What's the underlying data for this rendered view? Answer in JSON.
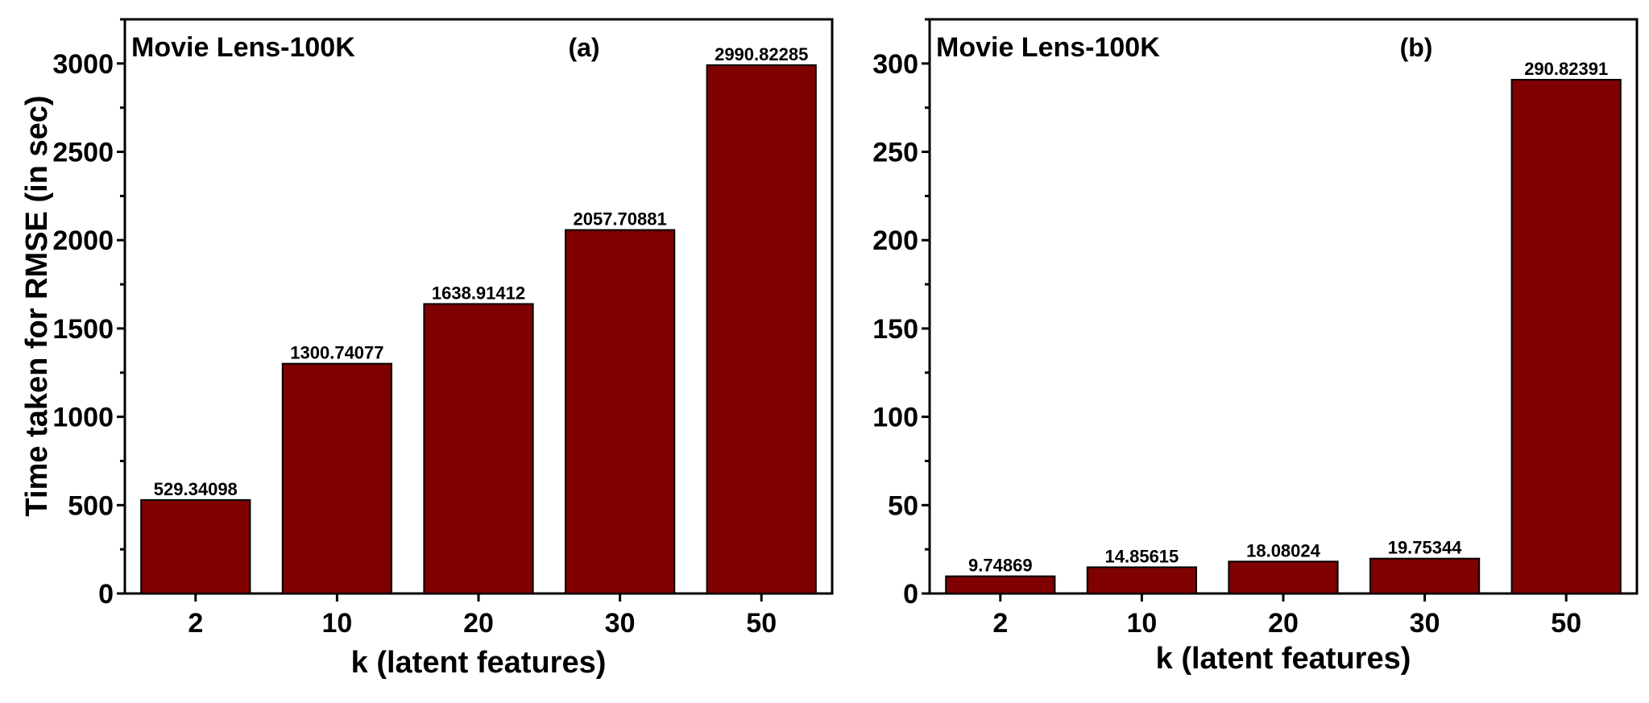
{
  "chart_data": [
    {
      "type": "bar",
      "title": "Movie Lens-100K",
      "panel_label": "(a)",
      "xlabel": "k (latent features)",
      "ylabel": "Time taken for RMSE (in sec)",
      "categories": [
        "2",
        "10",
        "20",
        "30",
        "50"
      ],
      "values": [
        529.34098,
        1300.74077,
        1638.91412,
        2057.70881,
        2990.82285
      ],
      "value_labels": [
        "529.34098",
        "1300.74077",
        "1638.91412",
        "2057.70881",
        "2990.82285"
      ],
      "ylim": [
        0,
        3250
      ],
      "yticks": [
        0,
        500,
        1000,
        1500,
        2000,
        2500,
        3000
      ],
      "bar_color": "#7f0000",
      "grid": false
    },
    {
      "type": "bar",
      "title": "Movie Lens-100K",
      "panel_label": "(b)",
      "xlabel": "k (latent features)",
      "ylabel": "",
      "categories": [
        "2",
        "10",
        "20",
        "30",
        "50"
      ],
      "values": [
        9.74869,
        14.85615,
        18.08024,
        19.75344,
        290.82391
      ],
      "value_labels": [
        "9.74869",
        "14.85615",
        "18.08024",
        "19.75344",
        "290.82391"
      ],
      "ylim": [
        0,
        325
      ],
      "yticks": [
        0,
        50,
        100,
        150,
        200,
        250,
        300
      ],
      "bar_color": "#7f0000",
      "grid": false
    }
  ]
}
